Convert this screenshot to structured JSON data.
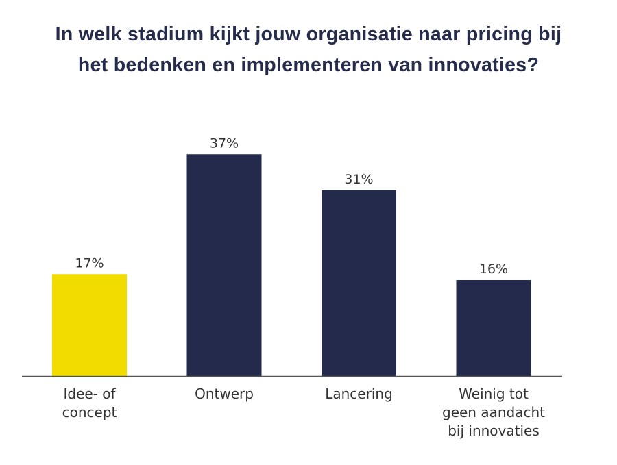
{
  "chart_data": {
    "type": "bar",
    "title_lines": [
      "In welk stadium kijkt jouw organisatie naar pricing bij",
      "het bedenken en implementeren van innovaties?"
    ],
    "categories": [
      [
        "Idee- of",
        "concept"
      ],
      [
        "Ontwerp"
      ],
      [
        "Lancering"
      ],
      [
        "Weinig tot",
        "geen aandacht",
        "bij innovaties"
      ]
    ],
    "values": [
      17,
      37,
      31,
      16
    ],
    "data_labels": [
      "17%",
      "37%",
      "31%",
      "16%"
    ],
    "colors": [
      "#F2DC00",
      "#232A4B",
      "#232A4B",
      "#232A4B"
    ],
    "ylim": [
      0,
      40
    ],
    "grid": false,
    "xlabel": "",
    "ylabel": ""
  }
}
